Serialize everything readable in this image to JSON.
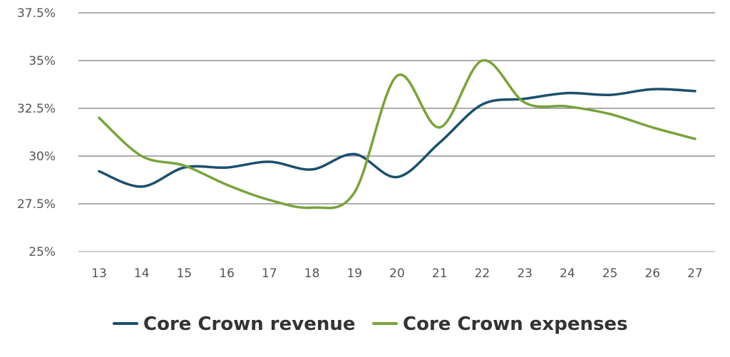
{
  "chart_data": {
    "type": "line",
    "x": [
      13,
      14,
      15,
      16,
      17,
      18,
      19,
      20,
      21,
      22,
      23,
      24,
      25,
      26,
      27
    ],
    "x_tick_labels": [
      "13",
      "14",
      "15",
      "16",
      "17",
      "18",
      "19",
      "20",
      "21",
      "22",
      "23",
      "24",
      "25",
      "26",
      "27"
    ],
    "ylim": [
      25,
      37.5
    ],
    "y_ticks": [
      25,
      27.5,
      30,
      32.5,
      35,
      37.5
    ],
    "y_tick_labels": [
      "25%",
      "27.5%",
      "30%",
      "32.5%",
      "35%",
      "37.5%"
    ],
    "grid": "horizontal",
    "legend_position": "bottom-center",
    "series": [
      {
        "name": "Core Crown revenue",
        "color": "#1b4f6e",
        "values": [
          29.2,
          28.4,
          29.4,
          29.4,
          29.7,
          29.3,
          30.1,
          28.9,
          30.7,
          32.7,
          33.0,
          33.3,
          33.2,
          33.5,
          33.4
        ]
      },
      {
        "name": "Core Crown expenses",
        "color": "#78a33b",
        "values": [
          32.0,
          30.0,
          29.5,
          28.5,
          27.7,
          27.3,
          28.1,
          34.2,
          31.5,
          35.0,
          32.8,
          32.6,
          32.2,
          31.5,
          30.9
        ]
      }
    ],
    "colors": {
      "gridline": "#7a7a7a",
      "baseline": "#b8bcd8",
      "tick_text": "#555555",
      "legend_text": "#333333"
    }
  }
}
